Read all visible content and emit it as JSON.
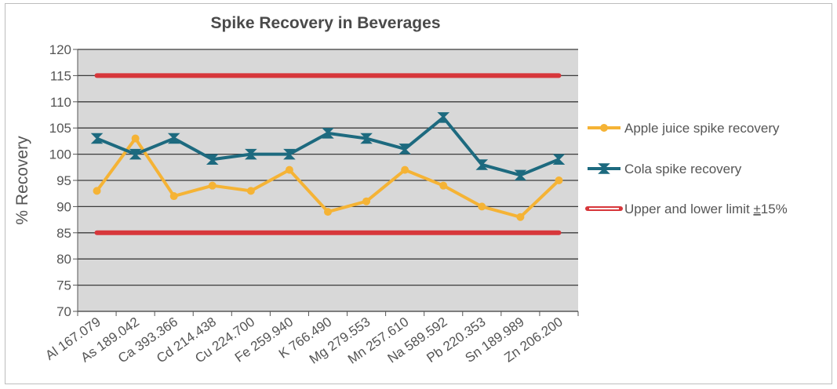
{
  "chart_data": {
    "type": "line",
    "title": "Spike Recovery in Beverages",
    "xlabel": "",
    "ylabel": "% Recovery",
    "ylim": [
      70,
      120
    ],
    "yticks": [
      70,
      75,
      80,
      85,
      90,
      95,
      100,
      105,
      110,
      115,
      120
    ],
    "grid": "horizontal",
    "legend_position": "right",
    "categories": [
      "Al 167.079",
      "As 189.042",
      "Ca 393.366",
      "Cd 214.438",
      "Cu 224.700",
      "Fe 259.940",
      "K 766.490",
      "Mg 279.553",
      "Mn 257.610",
      "Na 589.592",
      "Pb 220.353",
      "Sn 189.989",
      "Zn 206.200"
    ],
    "series": [
      {
        "name": "Apple juice spike recovery",
        "color": "#f5b335",
        "marker": "circle",
        "values": [
          93,
          103,
          92,
          94,
          93,
          97,
          89,
          91,
          97,
          94,
          90,
          88,
          95
        ]
      },
      {
        "name": "Cola spike recovery",
        "color": "#1d6a7f",
        "marker": "star",
        "values": [
          103,
          100,
          103,
          99,
          100,
          100,
          104,
          103,
          101,
          107,
          98,
          96,
          99
        ]
      },
      {
        "name": "Upper and lower limit ±15%",
        "color": "#d7373b",
        "marker": "none",
        "values_upper": [
          115,
          115,
          115,
          115,
          115,
          115,
          115,
          115,
          115,
          115,
          115,
          115,
          115
        ],
        "values_lower": [
          85,
          85,
          85,
          85,
          85,
          85,
          85,
          85,
          85,
          85,
          85,
          85,
          85
        ]
      }
    ],
    "legend": {
      "apple": "Apple juice spike recovery",
      "cola": "Cola spike recovery",
      "limit_prefix": "Upper and lower limit ",
      "limit_pm": "±",
      "limit_suffix": "15%"
    },
    "colors": {
      "plot_bg": "#d8d8d8",
      "grid": "#3c3c3c",
      "axis": "#555555"
    }
  }
}
